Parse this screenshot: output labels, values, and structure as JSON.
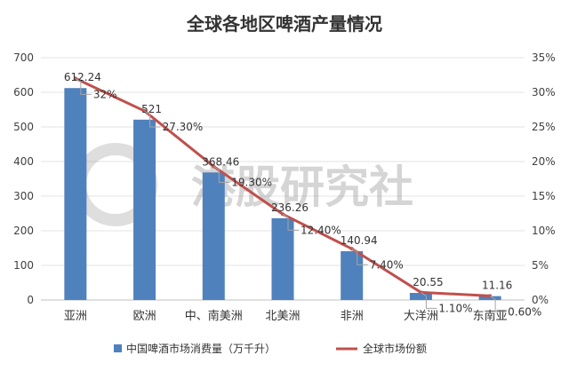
{
  "chart_data": {
    "type": "bar",
    "title": "全球各地区啤酒产量情况",
    "categories": [
      "亚洲",
      "欧洲",
      "中、南美洲",
      "北美洲",
      "非洲",
      "大洋洲",
      "东南亚"
    ],
    "series": [
      {
        "name": "中国啤酒市场消费量（万千升）",
        "type": "bar",
        "axis": "left",
        "color": "#4f81bd",
        "values": [
          612.24,
          521,
          368.46,
          236.26,
          140.94,
          20.55,
          11.16
        ],
        "labels": [
          "612.24",
          "521",
          "368.46",
          "236.26",
          "140.94",
          "20.55",
          "11.16"
        ]
      },
      {
        "name": "全球市场份额",
        "type": "line",
        "axis": "right",
        "color": "#c0504d",
        "values": [
          32,
          27.3,
          19.3,
          12.4,
          7.4,
          1.1,
          0.6
        ],
        "labels": [
          "32%",
          "27.30%",
          "19.30%",
          "12.40%",
          "7.40%",
          "1.10%",
          "0.60%"
        ]
      }
    ],
    "y_left": {
      "min": 0,
      "max": 700,
      "ticks": [
        "0",
        "100",
        "200",
        "300",
        "400",
        "500",
        "600",
        "700"
      ]
    },
    "y_right": {
      "min": 0,
      "max": 35,
      "ticks": [
        "0%",
        "5%",
        "10%",
        "15%",
        "20%",
        "25%",
        "30%",
        "35%"
      ]
    },
    "grid": true,
    "legend_position": "bottom",
    "watermark": "港股研究社"
  }
}
